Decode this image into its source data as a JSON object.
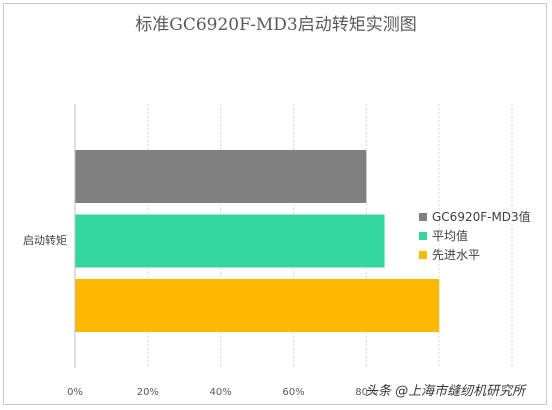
{
  "chart_data": {
    "type": "bar",
    "orientation": "horizontal",
    "title": "标准GC6920F-MD3启动转矩实测图",
    "categories": [
      "启动转矩"
    ],
    "series": [
      {
        "name": "GC6920F-MD3值",
        "values": [
          80
        ],
        "color": "#808080"
      },
      {
        "name": "平均值",
        "values": [
          85
        ],
        "color": "#33d69f"
      },
      {
        "name": "先进水平",
        "values": [
          100
        ],
        "color": "#ffb800"
      }
    ],
    "x_ticks": [
      "0%",
      "20%",
      "40%",
      "60%",
      "80%"
    ],
    "xlim": [
      0,
      120
    ],
    "grid": true,
    "legend_position": "right"
  },
  "watermark": "头条 @上海市缝纫机研究所"
}
